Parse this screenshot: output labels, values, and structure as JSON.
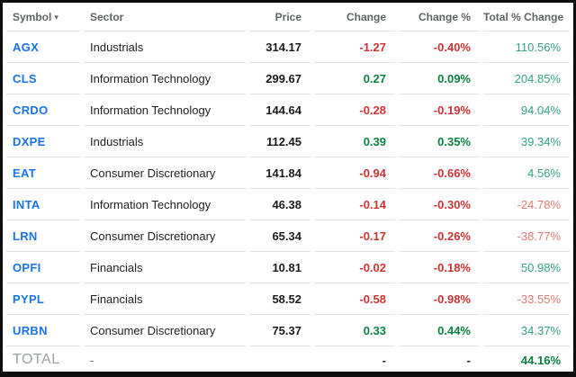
{
  "colors": {
    "symbol_blue": "#1a73e8",
    "pos_green": "#0b8043",
    "neg_red": "#cc3333",
    "pos_green_light": "#34a284",
    "neg_red_light": "#df7b72",
    "header_gray": "#5f6368",
    "total_gray": "#9aa0a6",
    "frame_black": "#0d0d0d",
    "divider_gray": "#e1e3e6"
  },
  "table": {
    "sort_indicator": "▾",
    "columns": [
      {
        "label": "Symbol",
        "sorted": "desc",
        "align": "left"
      },
      {
        "label": "Sector",
        "align": "left"
      },
      {
        "label": "Price",
        "align": "right"
      },
      {
        "label": "Change",
        "align": "right"
      },
      {
        "label": "Change %",
        "align": "right"
      },
      {
        "label": "Total % Change",
        "align": "right"
      }
    ],
    "rows": [
      {
        "symbol": "AGX",
        "sector": "Industrials",
        "price": "314.17",
        "change": "-1.27",
        "change_pct": "-0.40%",
        "total_pct": "110.56%"
      },
      {
        "symbol": "CLS",
        "sector": "Information Technology",
        "price": "299.67",
        "change": "0.27",
        "change_pct": "0.09%",
        "total_pct": "204.85%"
      },
      {
        "symbol": "CRDO",
        "sector": "Information Technology",
        "price": "144.64",
        "change": "-0.28",
        "change_pct": "-0.19%",
        "total_pct": "94.04%"
      },
      {
        "symbol": "DXPE",
        "sector": "Industrials",
        "price": "112.45",
        "change": "0.39",
        "change_pct": "0.35%",
        "total_pct": "39.34%"
      },
      {
        "symbol": "EAT",
        "sector": "Consumer Discretionary",
        "price": "141.84",
        "change": "-0.94",
        "change_pct": "-0.66%",
        "total_pct": "4.56%"
      },
      {
        "symbol": "INTA",
        "sector": "Information Technology",
        "price": "46.38",
        "change": "-0.14",
        "change_pct": "-0.30%",
        "total_pct": "-24.78%"
      },
      {
        "symbol": "LRN",
        "sector": "Consumer Discretionary",
        "price": "65.34",
        "change": "-0.17",
        "change_pct": "-0.26%",
        "total_pct": "-38.77%"
      },
      {
        "symbol": "OPFI",
        "sector": "Financials",
        "price": "10.81",
        "change": "-0.02",
        "change_pct": "-0.18%",
        "total_pct": "50.98%"
      },
      {
        "symbol": "PYPL",
        "sector": "Financials",
        "price": "58.52",
        "change": "-0.58",
        "change_pct": "-0.98%",
        "total_pct": "-33.55%"
      },
      {
        "symbol": "URBN",
        "sector": "Consumer Discretionary",
        "price": "75.37",
        "change": "0.33",
        "change_pct": "0.44%",
        "total_pct": "34.37%"
      }
    ],
    "total_row": {
      "label": "TOTAL",
      "sector": "-",
      "price": "",
      "change": "-",
      "change_pct": "-",
      "total_pct": "44.16%"
    }
  }
}
